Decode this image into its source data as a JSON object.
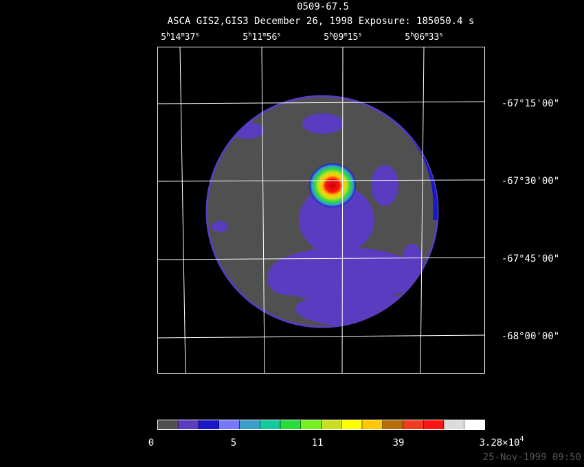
{
  "header": {
    "title": "0509-67.5",
    "subtitle": "ASCA GIS2,GIS3 December 26, 1998 Exposure: 185050.4 s"
  },
  "ra_labels": [
    [
      "5",
      "h",
      "14",
      "m",
      "37",
      "s"
    ],
    [
      "5",
      "h",
      "11",
      "m",
      "56",
      "s"
    ],
    [
      "5",
      "h",
      "09",
      "m",
      "15",
      "s"
    ],
    [
      "5",
      "h",
      "06",
      "m",
      "33",
      "s"
    ]
  ],
  "dec_labels": [
    "-67°15'00\"",
    "-67°30'00\"",
    "-67°45'00\"",
    "-68°00'00\""
  ],
  "colorbar": {
    "colors": [
      "#505050",
      "#5a3cc0",
      "#1818c8",
      "#7878ff",
      "#3c9ec8",
      "#14c8a0",
      "#28dc3c",
      "#78f01e",
      "#c8e01e",
      "#ffff00",
      "#ffc800",
      "#b46e0a",
      "#f03c1e",
      "#ff1414",
      "#dcdcdc",
      "#ffffff"
    ],
    "labels": [
      "0",
      "5",
      "11",
      "39",
      {
        "mantissa": "3.28×10",
        "exponent": "4"
      }
    ]
  },
  "footer": {
    "timestamp": "25-Nov-1999 09:50"
  }
}
